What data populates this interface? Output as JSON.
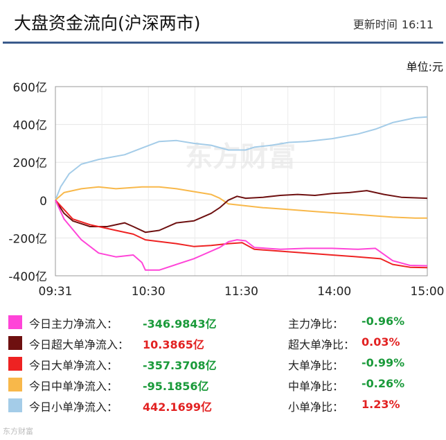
{
  "header": {
    "title": "大盘资金流向(沪深两市)",
    "update_label": "更新时间",
    "update_time": "16:11"
  },
  "unit_label": "单位:元",
  "watermark": "东方财富",
  "chart_data": {
    "type": "line",
    "x_ticks": [
      "09:31",
      "10:30",
      "11:30",
      "14:00",
      "15:00"
    ],
    "y_ticks": [
      "600亿",
      "400亿",
      "200亿",
      "0",
      "-200亿",
      "-400亿"
    ],
    "ylim": [
      -400,
      600
    ],
    "grid": true,
    "colors": {
      "zhuli": "#ff44d8",
      "chaoda": "#6e1010",
      "dadan": "#ee2222",
      "zhongdan": "#f8b84a",
      "xiaodan": "#a4cce8"
    },
    "series": [
      {
        "key": "xiaodan",
        "name": "今日小单净流入",
        "color": "#a4cce8",
        "points": [
          [
            0,
            0
          ],
          [
            3,
            70
          ],
          [
            8,
            140
          ],
          [
            15,
            190
          ],
          [
            25,
            215
          ],
          [
            40,
            240
          ],
          [
            50,
            275
          ],
          [
            60,
            310
          ],
          [
            70,
            315
          ],
          [
            80,
            300
          ],
          [
            90,
            290
          ],
          [
            100,
            265
          ],
          [
            110,
            265
          ],
          [
            115,
            280
          ],
          [
            125,
            290
          ],
          [
            135,
            305
          ],
          [
            145,
            310
          ],
          [
            160,
            325
          ],
          [
            175,
            350
          ],
          [
            185,
            375
          ],
          [
            195,
            410
          ],
          [
            208,
            435
          ],
          [
            215,
            440
          ]
        ]
      },
      {
        "key": "zhongdan",
        "name": "今日中单净流入",
        "color": "#f8b84a",
        "points": [
          [
            0,
            0
          ],
          [
            5,
            40
          ],
          [
            15,
            60
          ],
          [
            25,
            70
          ],
          [
            35,
            60
          ],
          [
            50,
            70
          ],
          [
            60,
            70
          ],
          [
            70,
            60
          ],
          [
            80,
            45
          ],
          [
            90,
            30
          ],
          [
            95,
            10
          ],
          [
            100,
            -20
          ],
          [
            110,
            -30
          ],
          [
            120,
            -40
          ],
          [
            135,
            -50
          ],
          [
            150,
            -60
          ],
          [
            165,
            -70
          ],
          [
            180,
            -80
          ],
          [
            195,
            -90
          ],
          [
            208,
            -95
          ],
          [
            215,
            -95
          ]
        ]
      },
      {
        "key": "chaoda",
        "name": "今日超大单净流入",
        "color": "#6e1010",
        "points": [
          [
            0,
            0
          ],
          [
            5,
            -70
          ],
          [
            10,
            -110
          ],
          [
            20,
            -140
          ],
          [
            30,
            -140
          ],
          [
            40,
            -120
          ],
          [
            45,
            -140
          ],
          [
            52,
            -170
          ],
          [
            60,
            -160
          ],
          [
            70,
            -120
          ],
          [
            80,
            -110
          ],
          [
            90,
            -70
          ],
          [
            95,
            -40
          ],
          [
            100,
            0
          ],
          [
            105,
            20
          ],
          [
            110,
            10
          ],
          [
            120,
            15
          ],
          [
            130,
            25
          ],
          [
            140,
            30
          ],
          [
            150,
            25
          ],
          [
            160,
            35
          ],
          [
            170,
            40
          ],
          [
            180,
            50
          ],
          [
            190,
            30
          ],
          [
            200,
            15
          ],
          [
            215,
            10
          ]
        ]
      },
      {
        "key": "dadan",
        "name": "今日大单净流入",
        "color": "#ee2222",
        "points": [
          [
            0,
            0
          ],
          [
            10,
            -100
          ],
          [
            20,
            -130
          ],
          [
            35,
            -160
          ],
          [
            45,
            -180
          ],
          [
            52,
            -210
          ],
          [
            70,
            -230
          ],
          [
            80,
            -245
          ],
          [
            90,
            -240
          ],
          [
            100,
            -230
          ],
          [
            108,
            -225
          ],
          [
            115,
            -260
          ],
          [
            130,
            -270
          ],
          [
            145,
            -280
          ],
          [
            160,
            -290
          ],
          [
            175,
            -300
          ],
          [
            188,
            -310
          ],
          [
            195,
            -340
          ],
          [
            205,
            -355
          ],
          [
            215,
            -357
          ]
        ]
      },
      {
        "key": "zhuli",
        "name": "今日主力净流入",
        "color": "#ff44d8",
        "points": [
          [
            0,
            0
          ],
          [
            5,
            -100
          ],
          [
            15,
            -210
          ],
          [
            25,
            -280
          ],
          [
            35,
            -300
          ],
          [
            45,
            -290
          ],
          [
            50,
            -330
          ],
          [
            52,
            -370
          ],
          [
            60,
            -370
          ],
          [
            70,
            -340
          ],
          [
            80,
            -310
          ],
          [
            85,
            -290
          ],
          [
            95,
            -250
          ],
          [
            100,
            -220
          ],
          [
            105,
            -210
          ],
          [
            110,
            -215
          ],
          [
            115,
            -250
          ],
          [
            130,
            -260
          ],
          [
            145,
            -255
          ],
          [
            160,
            -255
          ],
          [
            175,
            -260
          ],
          [
            185,
            -255
          ],
          [
            195,
            -320
          ],
          [
            205,
            -345
          ],
          [
            215,
            -347
          ]
        ]
      }
    ]
  },
  "legend": [
    {
      "label": "今日主力净流入：",
      "value": "-346.9843亿",
      "ratio_label": "主力净比：",
      "ratio": "-0.96%",
      "color": "#ff44d8",
      "sign": "neg"
    },
    {
      "label": "今日超大单净流入：",
      "value": "10.3865亿",
      "ratio_label": "超大单净比：",
      "ratio": "0.03%",
      "color": "#6e1010",
      "sign": "pos"
    },
    {
      "label": "今日大单净流入：",
      "value": "-357.3708亿",
      "ratio_label": "大单净比：",
      "ratio": "-0.99%",
      "color": "#ee2222",
      "sign": "neg"
    },
    {
      "label": "今日中单净流入：",
      "value": "-95.1856亿",
      "ratio_label": "中单净比：",
      "ratio": "-0.26%",
      "color": "#f8b84a",
      "sign": "neg"
    },
    {
      "label": "今日小单净流入：",
      "value": "442.1699亿",
      "ratio_label": "小单净比：",
      "ratio": "1.23%",
      "color": "#a4cce8",
      "sign": "pos"
    }
  ],
  "footer_logo": "东方财富"
}
